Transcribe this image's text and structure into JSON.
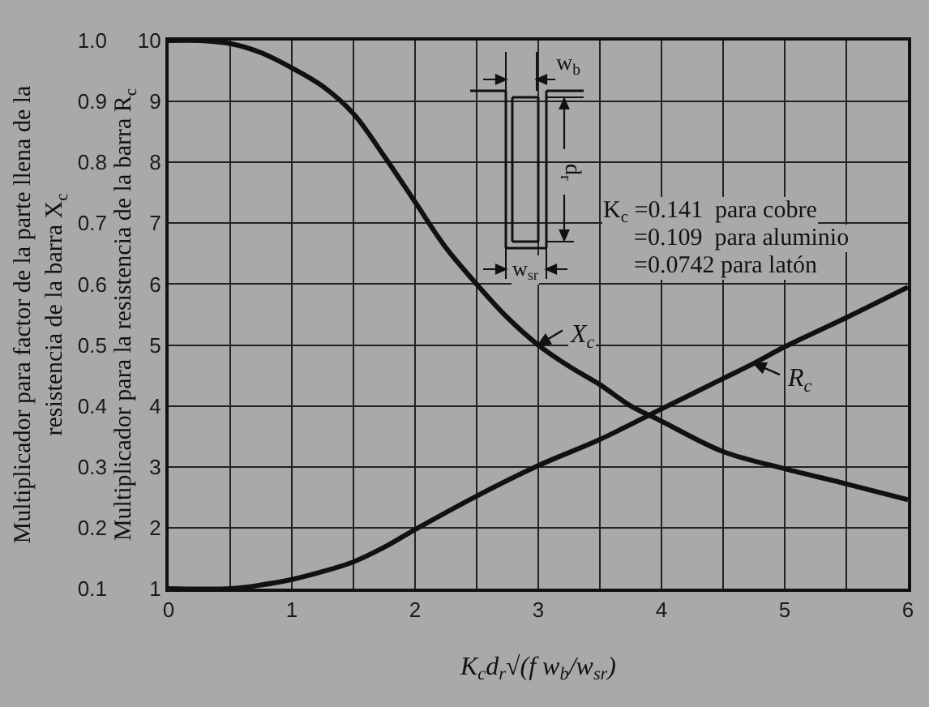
{
  "chart_data": {
    "type": "line",
    "xlabel": "K$_{c}$d$_{r}$√(f w$_{b}$/w$_{sr}$)",
    "ylabel": "Multiplicador para la resistencia de la barra R$_{c}$",
    "y2label": "Multiplicador para factor de la parte llena de la\nresistencia de la barra X$_{c}$",
    "annotations": [
      "K$_{c}$ =0.141  para cobre",
      "=0.109  para aluminio",
      "=0.0742 para latón",
      "w$_{b}$",
      "d$_{r}$",
      "w$_{sr}$",
      {
        "text": "X$_{c}$",
        "x": 3,
        "y": 5
      },
      {
        "text": "R$_{c}$",
        "x": 4.75,
        "y": 4.7
      }
    ],
    "series": [
      {
        "color": "#111111",
        "axis": "y2",
        "x": [
          0,
          0.25,
          0.5,
          0.75,
          1,
          1.25,
          1.5,
          1.75,
          2,
          2.25,
          2.5,
          2.75,
          3,
          3.25,
          3.5,
          3.75,
          4,
          4.5,
          5,
          5.5,
          6
        ],
        "values": [
          1.0,
          1.0,
          0.995,
          0.98,
          0.955,
          0.925,
          0.88,
          0.81,
          0.735,
          0.66,
          0.6,
          0.545,
          0.5,
          0.465,
          0.435,
          0.4,
          0.375,
          0.325,
          0.297,
          0.272,
          0.246
        ]
      },
      {
        "color": "#111111",
        "x": [
          0,
          0.5,
          0.75,
          1,
          1.25,
          1.5,
          1.75,
          2,
          2.5,
          3,
          3.5,
          4,
          4.5,
          4.75,
          5,
          5.5,
          6
        ],
        "values": [
          1,
          1,
          1.06,
          1.15,
          1.28,
          1.44,
          1.68,
          1.97,
          2.52,
          3.02,
          3.45,
          3.95,
          4.45,
          4.7,
          4.97,
          5.45,
          5.95
        ]
      }
    ],
    "xlim": [
      0,
      6
    ],
    "xticks": [
      0,
      {
        "value": 0.5,
        "label": null
      },
      1,
      {
        "value": 1.5,
        "label": null
      },
      2,
      {
        "value": 2.5,
        "label": null
      },
      3,
      {
        "value": 3.5,
        "label": null
      },
      4,
      {
        "value": 4.5,
        "label": null
      },
      5,
      {
        "value": 5.5,
        "label": null
      },
      6
    ],
    "ylim": [
      1,
      10
    ],
    "yticks": [
      1,
      2,
      3,
      4,
      5,
      6,
      7,
      8,
      9,
      10
    ],
    "y2lim": [
      0.1,
      1
    ],
    "y2ticks": [
      0.1,
      0.2,
      0.3,
      0.4,
      0.5,
      0.6,
      0.7,
      0.8,
      0.9,
      {
        "value": 1,
        "label": "1.0"
      }
    ],
    "grid": true
  }
}
